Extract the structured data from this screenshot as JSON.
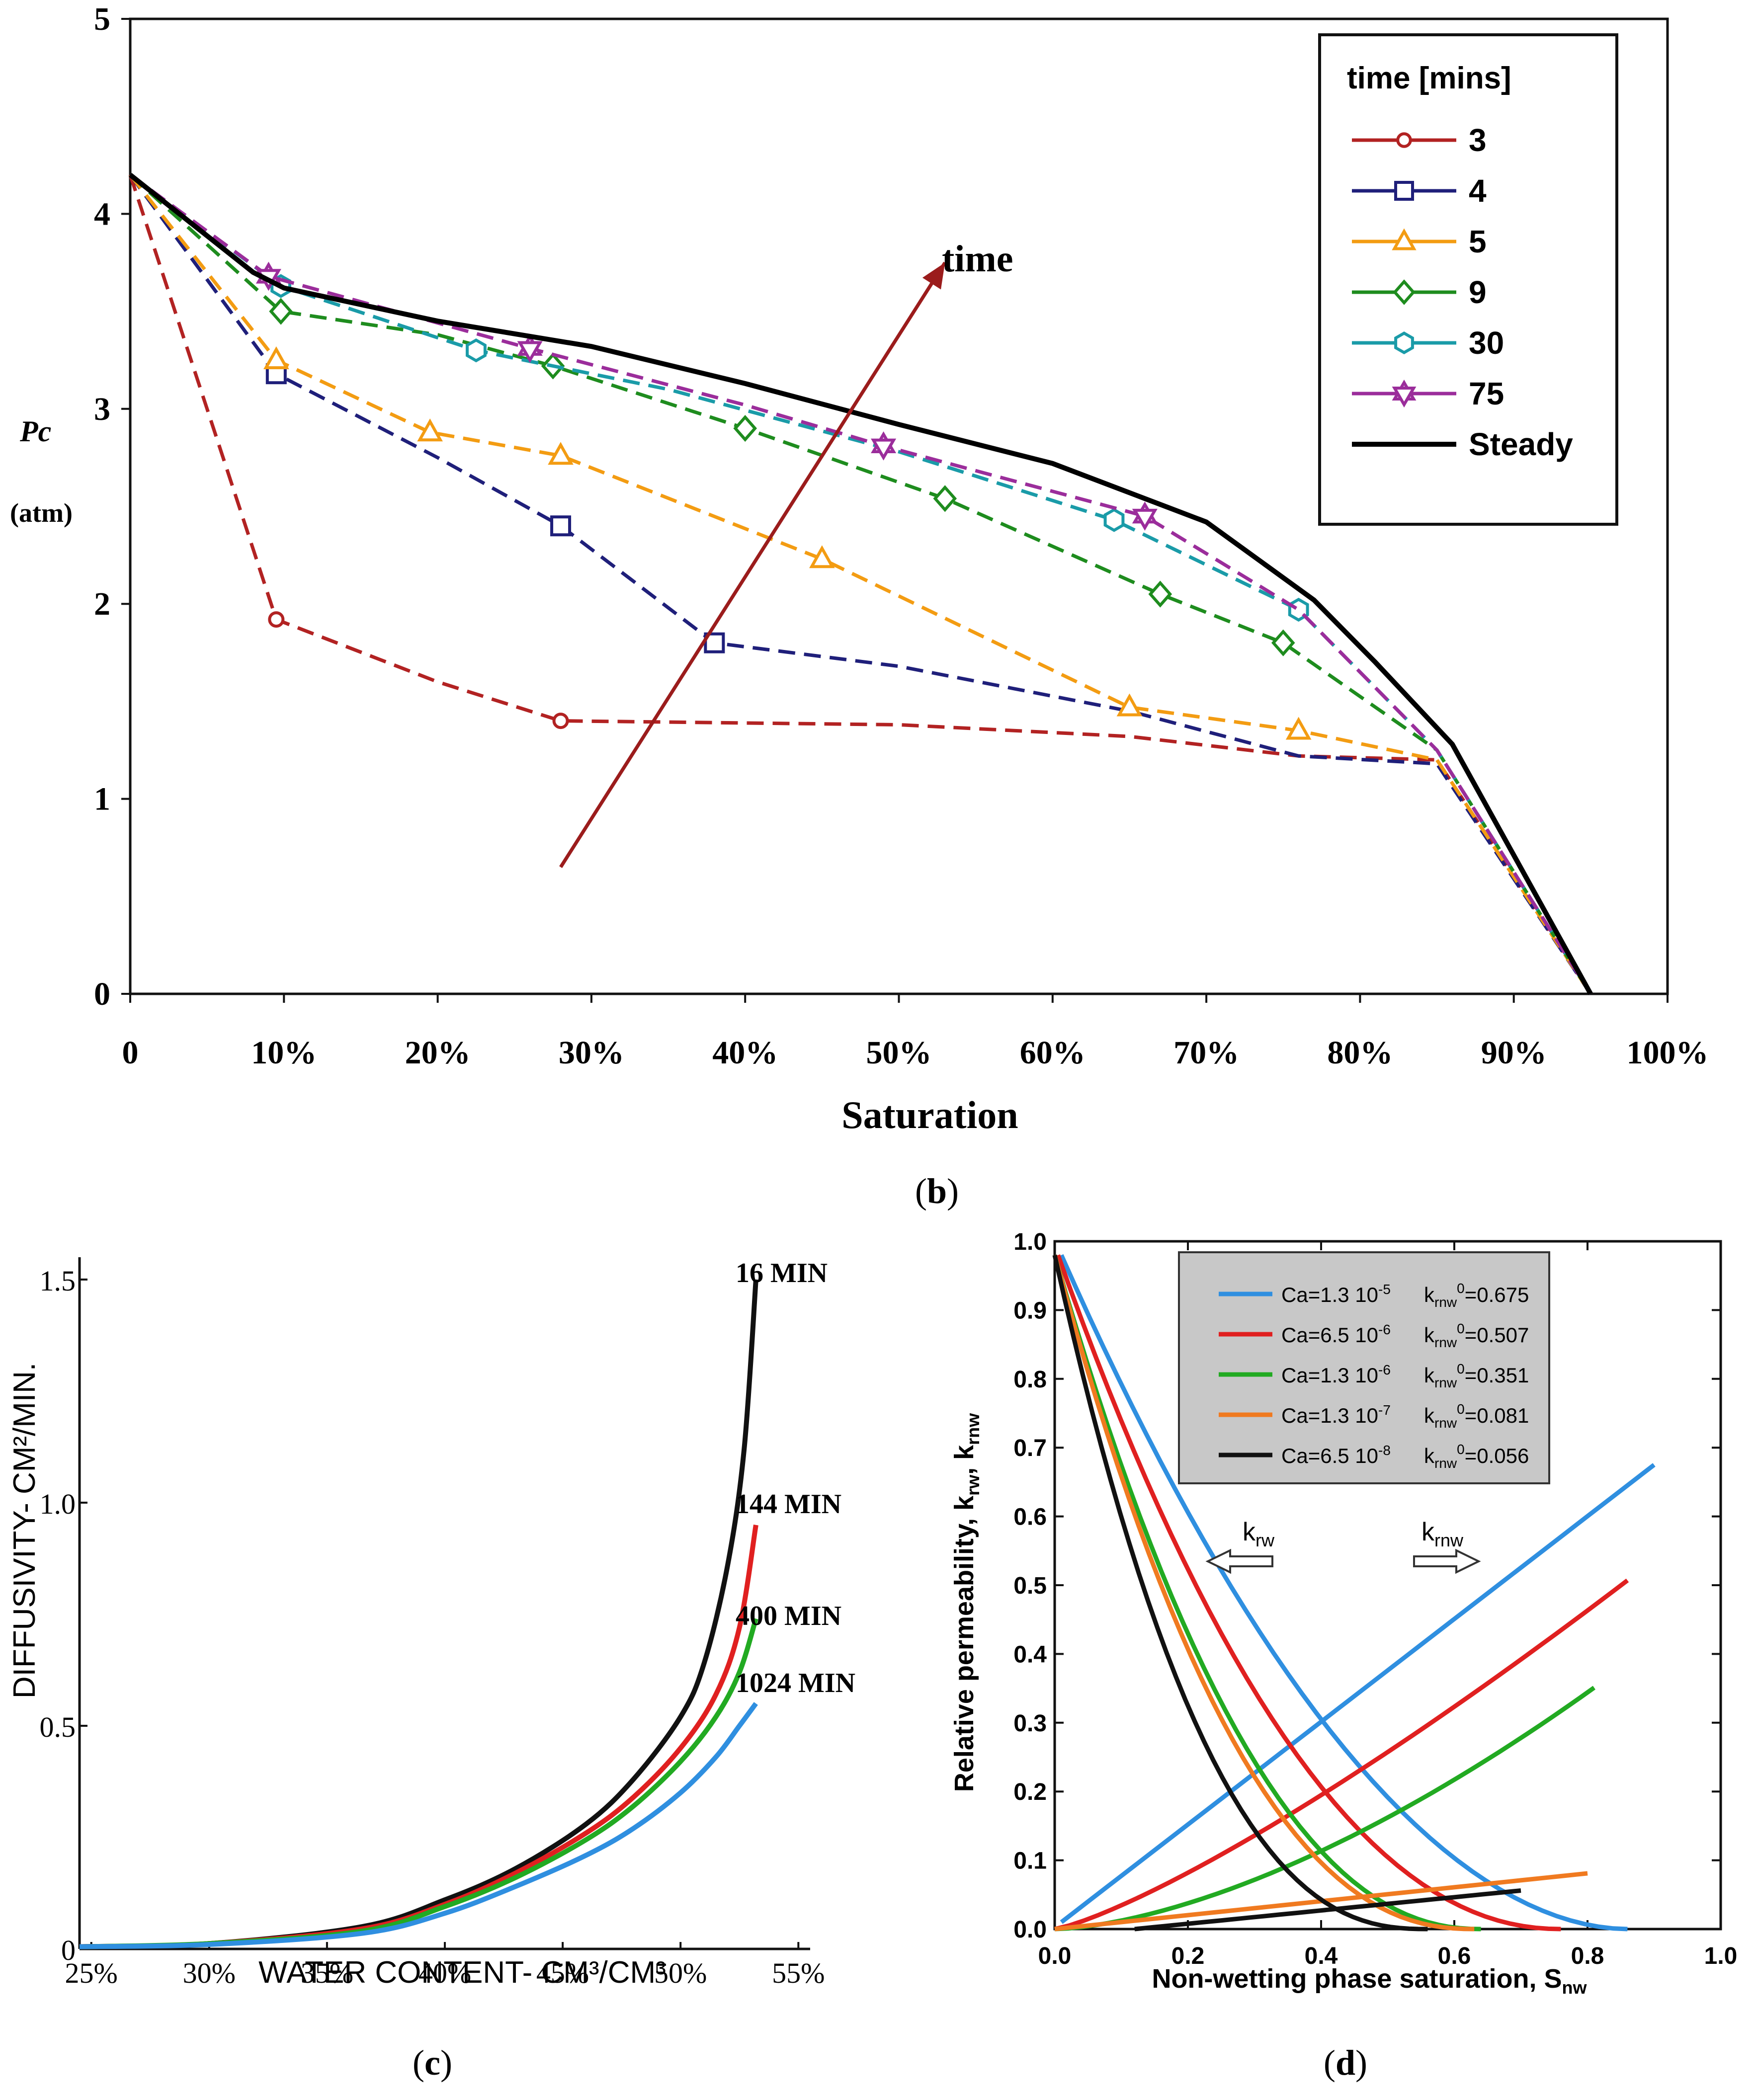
{
  "colors": {
    "b_3": "#b22222",
    "b_4": "#1f1f7a",
    "b_5": "#f39c12",
    "b_9": "#1e8c1e",
    "b_30": "#1a9ba8",
    "b_75": "#9b2d9b",
    "b_steady": "#000000",
    "c_16": "#111111",
    "c_144": "#e02020",
    "c_400": "#22aa22",
    "c_1024": "#2f8fe0",
    "d_1": "#2f8fe0",
    "d_2": "#e02020",
    "d_3": "#22aa22",
    "d_4": "#f07a20",
    "d_5": "#111111",
    "time_arrow": "#9b1c1c"
  },
  "panel_labels": {
    "b": "b",
    "c": "c",
    "d": "d"
  },
  "chart_data": [
    {
      "id": "b",
      "type": "line",
      "xlabel": "Saturation",
      "ylabel": "Pc",
      "ylabel_unit": "(atm)",
      "xlim": [
        0,
        100
      ],
      "ylim": [
        0,
        5
      ],
      "x_ticks": [
        {
          "v": 0,
          "label": "0"
        },
        {
          "v": 10,
          "label": "10%"
        },
        {
          "v": 20,
          "label": "20%"
        },
        {
          "v": 30,
          "label": "30%"
        },
        {
          "v": 40,
          "label": "40%"
        },
        {
          "v": 50,
          "label": "50%"
        },
        {
          "v": 60,
          "label": "60%"
        },
        {
          "v": 70,
          "label": "70%"
        },
        {
          "v": 80,
          "label": "80%"
        },
        {
          "v": 90,
          "label": "90%"
        },
        {
          "v": 100,
          "label": "100%"
        }
      ],
      "y_ticks": [
        {
          "v": 0,
          "label": "0"
        },
        {
          "v": 1,
          "label": "1"
        },
        {
          "v": 2,
          "label": "2"
        },
        {
          "v": 3,
          "label": "3"
        },
        {
          "v": 4,
          "label": "4"
        },
        {
          "v": 5,
          "label": "5"
        }
      ],
      "legend_title": "time [mins]",
      "legend_position": "top-right",
      "annotation": "time",
      "annotation_arrow": {
        "from": [
          28,
          0.65
        ],
        "to": [
          53,
          3.75
        ]
      },
      "series": [
        {
          "name": "3",
          "color_key": "b_3",
          "marker": "circle",
          "dash": true,
          "points": [
            [
              0,
              4.2
            ],
            [
              9.5,
              1.92
            ],
            [
              20,
              1.6
            ],
            [
              28,
              1.4
            ],
            [
              50,
              1.38
            ],
            [
              65,
              1.32
            ],
            [
              76,
              1.22
            ],
            [
              85,
              1.2
            ],
            [
              95,
              0
            ]
          ],
          "markers": [
            [
              9.5,
              1.92
            ],
            [
              28,
              1.4
            ]
          ]
        },
        {
          "name": "4",
          "color_key": "b_4",
          "marker": "square",
          "dash": true,
          "points": [
            [
              0,
              4.2
            ],
            [
              9.5,
              3.18
            ],
            [
              20,
              2.75
            ],
            [
              28,
              2.4
            ],
            [
              38,
              1.8
            ],
            [
              50,
              1.68
            ],
            [
              65,
              1.45
            ],
            [
              76,
              1.22
            ],
            [
              85,
              1.18
            ],
            [
              95,
              0
            ]
          ],
          "markers": [
            [
              9.5,
              3.18
            ],
            [
              28,
              2.4
            ],
            [
              38,
              1.8
            ]
          ]
        },
        {
          "name": "5",
          "color_key": "b_5",
          "marker": "triangle",
          "dash": true,
          "points": [
            [
              0,
              4.2
            ],
            [
              9.5,
              3.25
            ],
            [
              19.5,
              2.88
            ],
            [
              28,
              2.76
            ],
            [
              45,
              2.23
            ],
            [
              65,
              1.47
            ],
            [
              76,
              1.35
            ],
            [
              85,
              1.2
            ],
            [
              95,
              0
            ]
          ],
          "markers": [
            [
              9.5,
              3.25
            ],
            [
              19.5,
              2.88
            ],
            [
              28,
              2.76
            ],
            [
              45,
              2.23
            ],
            [
              65,
              1.47
            ],
            [
              76,
              1.35
            ]
          ]
        },
        {
          "name": "9",
          "color_key": "b_9",
          "marker": "diamond",
          "dash": true,
          "points": [
            [
              0,
              4.2
            ],
            [
              9.8,
              3.5
            ],
            [
              20,
              3.38
            ],
            [
              27.5,
              3.22
            ],
            [
              40,
              2.9
            ],
            [
              53,
              2.54
            ],
            [
              67,
              2.05
            ],
            [
              75,
              1.8
            ],
            [
              85,
              1.25
            ],
            [
              95,
              0
            ]
          ],
          "markers": [
            [
              9.8,
              3.5
            ],
            [
              27.5,
              3.22
            ],
            [
              40,
              2.9
            ],
            [
              53,
              2.54
            ],
            [
              67,
              2.05
            ],
            [
              75,
              1.8
            ]
          ]
        },
        {
          "name": "30",
          "color_key": "b_30",
          "marker": "hexagon",
          "dash": true,
          "points": [
            [
              0,
              4.2
            ],
            [
              9.8,
              3.63
            ],
            [
              22.5,
              3.3
            ],
            [
              35,
              3.1
            ],
            [
              50,
              2.78
            ],
            [
              64,
              2.43
            ],
            [
              76,
              1.97
            ],
            [
              85,
              1.25
            ],
            [
              95,
              0
            ]
          ],
          "markers": [
            [
              9.8,
              3.63
            ],
            [
              22.5,
              3.3
            ],
            [
              64,
              2.43
            ],
            [
              76,
              1.97
            ]
          ]
        },
        {
          "name": "75",
          "color_key": "b_75",
          "marker": "star",
          "dash": true,
          "points": [
            [
              0,
              4.2
            ],
            [
              9,
              3.68
            ],
            [
              26,
              3.31
            ],
            [
              40,
              3.02
            ],
            [
              49,
              2.81
            ],
            [
              66,
              2.45
            ],
            [
              76,
              1.97
            ],
            [
              85,
              1.25
            ],
            [
              95,
              0
            ]
          ],
          "markers": [
            [
              9,
              3.68
            ],
            [
              26,
              3.31
            ],
            [
              49,
              2.81
            ],
            [
              66,
              2.45
            ]
          ]
        },
        {
          "name": "Steady",
          "color_key": "b_steady",
          "marker": "none",
          "dash": false,
          "points": [
            [
              0,
              4.2
            ],
            [
              8,
              3.7
            ],
            [
              10,
              3.62
            ],
            [
              20,
              3.45
            ],
            [
              30,
              3.32
            ],
            [
              40,
              3.13
            ],
            [
              50,
              2.92
            ],
            [
              60,
              2.72
            ],
            [
              70,
              2.42
            ],
            [
              77,
              2.02
            ],
            [
              81,
              1.7
            ],
            [
              86,
              1.28
            ],
            [
              95,
              0
            ]
          ],
          "markers": []
        }
      ]
    },
    {
      "id": "c",
      "type": "line",
      "xlabel": "WATER CONTENT- CM³/CM³",
      "ylabel": "DIFFUSIVITY- CM²/MIN.",
      "xlim": [
        24.5,
        55.5
      ],
      "ylim": [
        0,
        1.55
      ],
      "x_ticks": [
        {
          "v": 25,
          "label": "25%"
        },
        {
          "v": 30,
          "label": "30%"
        },
        {
          "v": 35,
          "label": "35%"
        },
        {
          "v": 40,
          "label": "40%"
        },
        {
          "v": 45,
          "label": "45%"
        },
        {
          "v": 50,
          "label": "50%"
        },
        {
          "v": 55,
          "label": "55%"
        }
      ],
      "y_ticks": [
        {
          "v": 0,
          "label": "0"
        },
        {
          "v": 0.5,
          "label": "0.5"
        },
        {
          "v": 1.0,
          "label": "1.0"
        },
        {
          "v": 1.5,
          "label": "1.5"
        }
      ],
      "series": [
        {
          "name": "16 MIN",
          "color_key": "c_16",
          "points": [
            [
              24.5,
              0.005
            ],
            [
              30,
              0.012
            ],
            [
              36.5,
              0.05
            ],
            [
              40,
              0.11
            ],
            [
              43,
              0.18
            ],
            [
              46,
              0.28
            ],
            [
              48,
              0.38
            ],
            [
              50,
              0.52
            ],
            [
              51,
              0.64
            ],
            [
              52,
              0.86
            ],
            [
              52.7,
              1.12
            ],
            [
              53.2,
              1.5
            ]
          ]
        },
        {
          "name": "144 MIN",
          "color_key": "c_144",
          "points": [
            [
              24.5,
              0.005
            ],
            [
              30,
              0.012
            ],
            [
              36.5,
              0.045
            ],
            [
              40,
              0.1
            ],
            [
              43,
              0.17
            ],
            [
              46,
              0.26
            ],
            [
              48,
              0.34
            ],
            [
              50,
              0.45
            ],
            [
              51.5,
              0.57
            ],
            [
              52.5,
              0.72
            ],
            [
              53.2,
              0.95
            ]
          ]
        },
        {
          "name": "400 MIN",
          "color_key": "c_400",
          "points": [
            [
              24.5,
              0.005
            ],
            [
              30,
              0.012
            ],
            [
              36.5,
              0.04
            ],
            [
              40,
              0.095
            ],
            [
              43,
              0.16
            ],
            [
              46,
              0.245
            ],
            [
              48,
              0.32
            ],
            [
              50,
              0.42
            ],
            [
              51.5,
              0.52
            ],
            [
              52.5,
              0.62
            ],
            [
              53.2,
              0.74
            ]
          ]
        },
        {
          "name": "1024 MIN",
          "color_key": "c_1024",
          "points": [
            [
              24.5,
              0.005
            ],
            [
              30,
              0.01
            ],
            [
              36.5,
              0.035
            ],
            [
              40,
              0.08
            ],
            [
              43,
              0.14
            ],
            [
              46,
              0.21
            ],
            [
              48,
              0.27
            ],
            [
              50,
              0.35
            ],
            [
              51.5,
              0.43
            ],
            [
              52.5,
              0.5
            ],
            [
              53.2,
              0.55
            ]
          ]
        }
      ]
    },
    {
      "id": "d",
      "type": "line",
      "xlabel": "Non-wetting phase saturation, S",
      "xlabel_sub": "nw",
      "ylabel": "Relative permeability, k",
      "ylabel_sub1": "rw",
      "ylabel_mid": ", k",
      "ylabel_sub2": "rnw",
      "xlim": [
        0,
        1.0
      ],
      "ylim": [
        0,
        1.0
      ],
      "x_ticks": [
        {
          "v": 0,
          "label": "0.0"
        },
        {
          "v": 0.2,
          "label": "0.2"
        },
        {
          "v": 0.4,
          "label": "0.4"
        },
        {
          "v": 0.6,
          "label": "0.6"
        },
        {
          "v": 0.8,
          "label": "0.8"
        },
        {
          "v": 1.0,
          "label": "1.0"
        }
      ],
      "y_ticks": [
        {
          "v": 0,
          "label": "0.0"
        },
        {
          "v": 0.1,
          "label": "0.1"
        },
        {
          "v": 0.2,
          "label": "0.2"
        },
        {
          "v": 0.3,
          "label": "0.3"
        },
        {
          "v": 0.4,
          "label": "0.4"
        },
        {
          "v": 0.5,
          "label": "0.5"
        },
        {
          "v": 0.6,
          "label": "0.6"
        },
        {
          "v": 0.7,
          "label": "0.7"
        },
        {
          "v": 0.8,
          "label": "0.8"
        },
        {
          "v": 0.9,
          "label": "0.9"
        },
        {
          "v": 1.0,
          "label": "1.0"
        }
      ],
      "legend_position": "top-center",
      "krw_label": "k",
      "krw_sub": "rw",
      "krnw_label": "k",
      "krnw_sub": "rnw",
      "series": [
        {
          "ca": "Ca=1.3 10",
          "ca_exp": "-5",
          "k_end": "=0.675",
          "color_key": "d_1",
          "krw_start": 0.01,
          "krw_end": 0.86,
          "krw_exp": 1.9,
          "krnw_end": 0.9,
          "krnw_max": 0.675,
          "krnw_exp": 1.0
        },
        {
          "ca": "Ca=6.5 10",
          "ca_exp": "-6",
          "k_end": "=0.507",
          "color_key": "d_2",
          "krw_start": 0.005,
          "krw_end": 0.76,
          "krw_exp": 2.1,
          "krnw_end": 0.86,
          "krnw_max": 0.507,
          "krnw_exp": 1.25
        },
        {
          "ca": "Ca=1.3 10",
          "ca_exp": "-6",
          "k_end": "=0.351",
          "color_key": "d_3",
          "krw_start": 0.0,
          "krw_end": 0.64,
          "krw_exp": 2.2,
          "krnw_end": 0.81,
          "krnw_max": 0.351,
          "krnw_exp": 1.6
        },
        {
          "ca": "Ca=1.3 10",
          "ca_exp": "-7",
          "k_end": "=0.081",
          "color_key": "d_4",
          "krw_start": 0.0,
          "krw_end": 0.63,
          "krw_exp": 2.3,
          "krnw_end": 0.8,
          "krnw_max": 0.081,
          "krnw_exp": 1.0
        },
        {
          "ca": "Ca=6.5 10",
          "ca_exp": "-8",
          "k_end": "=0.056",
          "color_key": "d_5",
          "krw_start": 0.0,
          "krw_end": 0.56,
          "krw_exp": 2.5,
          "krnw_end": 0.7,
          "krnw_max": 0.056,
          "krnw_exp": 1.0
        }
      ],
      "legend_k": "k",
      "legend_k_sub": "rnw",
      "legend_k_sup": "0"
    }
  ]
}
